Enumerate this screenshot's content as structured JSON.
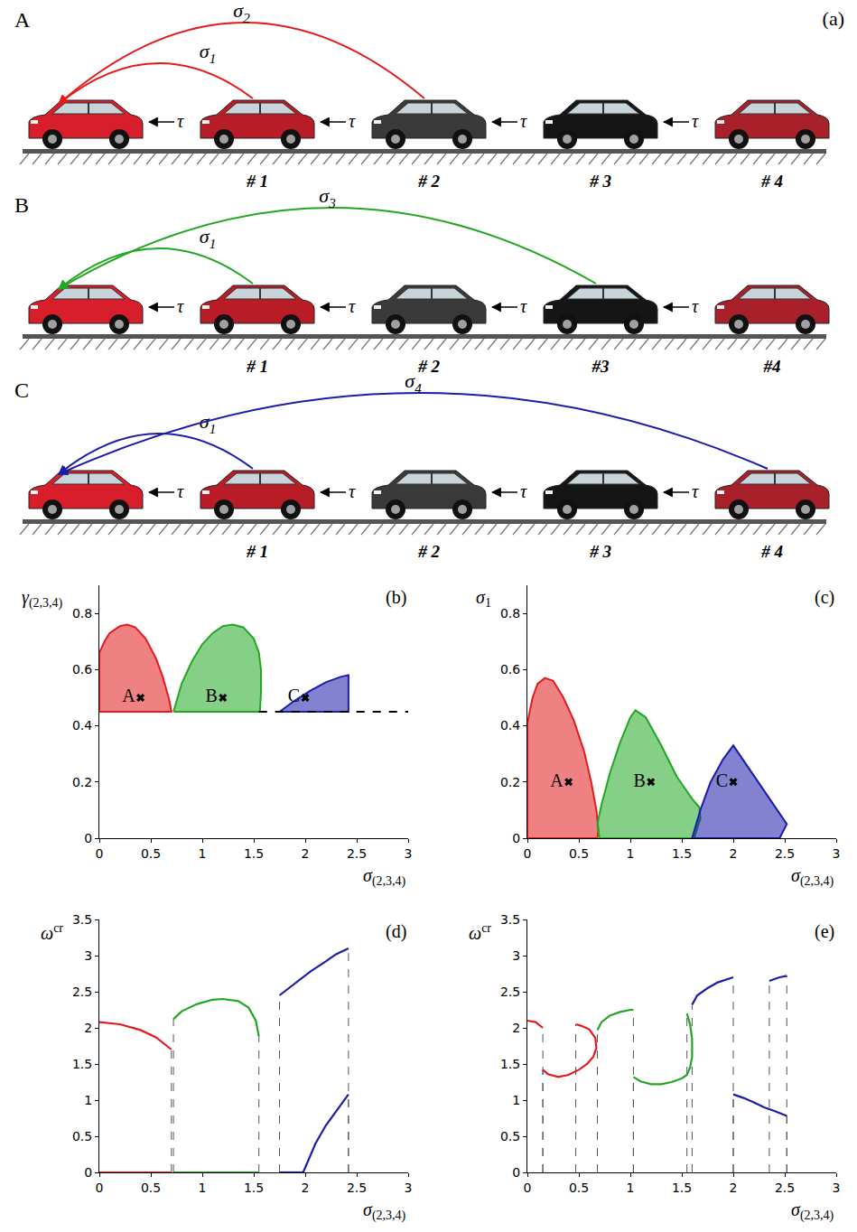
{
  "diagram": {
    "panel": "(a)",
    "rows": [
      {
        "label": "A",
        "color": "#e41a1c",
        "delay": "τ",
        "cars": [
          "# 1",
          "# 2",
          "# 3",
          "# 4"
        ],
        "links": [
          {
            "symbol": "σ",
            "sub": "1",
            "from": 1
          },
          {
            "symbol": "σ",
            "sub": "2",
            "from": 2
          }
        ]
      },
      {
        "label": "B",
        "color": "#22a722",
        "delay": "τ",
        "cars": [
          "# 1",
          "# 2",
          "#3",
          "#4"
        ],
        "links": [
          {
            "symbol": "σ",
            "sub": "1",
            "from": 1
          },
          {
            "symbol": "σ",
            "sub": "3",
            "from": 3
          }
        ]
      },
      {
        "label": "C",
        "color": "#1c1caa",
        "delay": "τ",
        "cars": [
          "# 1",
          "# 2",
          "# 3",
          "# 4"
        ],
        "links": [
          {
            "symbol": "σ",
            "sub": "1",
            "from": 1
          },
          {
            "symbol": "σ",
            "sub": "4",
            "from": 4
          }
        ]
      }
    ]
  },
  "chart_data": [
    {
      "type": "area",
      "panel": "(b)",
      "x_label": {
        "symbol": "σ",
        "sub": "(2,3,4)"
      },
      "y_label": {
        "symbol": "γ",
        "sub": "(2,3,4)"
      },
      "xlim": [
        0,
        3
      ],
      "xticks": [
        0,
        0.5,
        1,
        1.5,
        2,
        2.5,
        3
      ],
      "ylim": [
        0,
        0.9
      ],
      "yticks": [
        0,
        0.2,
        0.4,
        0.6,
        0.8
      ],
      "series": [
        {
          "type": "area",
          "color": "#e41a1c",
          "x": [
            0,
            0,
            0.05,
            0.1,
            0.2,
            0.27,
            0.35,
            0.45,
            0.55,
            0.62,
            0.68,
            0.7,
            0
          ],
          "values": [
            0.45,
            0.66,
            0.7,
            0.73,
            0.755,
            0.76,
            0.75,
            0.71,
            0.64,
            0.57,
            0.49,
            0.45,
            0.45
          ]
        },
        {
          "type": "area",
          "color": "#22a722",
          "x": [
            0.72,
            0.8,
            0.9,
            1.0,
            1.1,
            1.2,
            1.3,
            1.4,
            1.5,
            1.55,
            1.57,
            1.57,
            1.56,
            0.72
          ],
          "values": [
            0.45,
            0.55,
            0.63,
            0.69,
            0.73,
            0.755,
            0.76,
            0.75,
            0.71,
            0.66,
            0.6,
            0.52,
            0.45,
            0.45
          ]
        },
        {
          "type": "area",
          "color": "#1c1caa",
          "x": [
            1.75,
            1.9,
            2.05,
            2.2,
            2.35,
            2.42,
            2.42,
            1.75
          ],
          "values": [
            0.45,
            0.49,
            0.525,
            0.555,
            0.575,
            0.58,
            0.45,
            0.45
          ]
        },
        {
          "type": "line",
          "color": "#000000",
          "line_style": "dashed",
          "x": [
            1.55,
            3
          ],
          "values": [
            0.45,
            0.45
          ]
        }
      ],
      "points": {
        "marker": "x",
        "x": [
          0.4,
          1.2,
          2.0
        ],
        "values": [
          0.5,
          0.5,
          0.5
        ],
        "labels": [
          "A",
          "B",
          "C"
        ]
      }
    },
    {
      "type": "area",
      "panel": "(c)",
      "x_label": {
        "symbol": "σ",
        "sub": "(2,3,4)"
      },
      "y_label": {
        "symbol": "σ",
        "sub": "1"
      },
      "xlim": [
        0,
        3
      ],
      "xticks": [
        0,
        0.5,
        1,
        1.5,
        2,
        2.5,
        3
      ],
      "ylim": [
        0,
        0.9
      ],
      "yticks": [
        0,
        0.2,
        0.4,
        0.6,
        0.8
      ],
      "series": [
        {
          "type": "area",
          "color": "#e41a1c",
          "x": [
            0,
            0,
            0.05,
            0.1,
            0.17,
            0.25,
            0.35,
            0.45,
            0.55,
            0.62,
            0.67,
            0.69,
            0.68,
            0
          ],
          "values": [
            0,
            0.41,
            0.5,
            0.55,
            0.57,
            0.56,
            0.5,
            0.42,
            0.31,
            0.2,
            0.1,
            0.03,
            0,
            0
          ]
        },
        {
          "type": "area",
          "color": "#22a722",
          "x": [
            0.7,
            0.68,
            0.72,
            0.8,
            0.9,
            1.0,
            1.05,
            1.15,
            1.3,
            1.45,
            1.6,
            1.67,
            1.68,
            1.62,
            0.7
          ],
          "values": [
            0,
            0.05,
            0.12,
            0.23,
            0.34,
            0.43,
            0.455,
            0.43,
            0.33,
            0.22,
            0.14,
            0.11,
            0.07,
            0,
            0
          ]
        },
        {
          "type": "area",
          "color": "#1c1caa",
          "x": [
            1.6,
            1.68,
            1.78,
            1.9,
            2.0,
            2.52,
            2.45,
            1.6
          ],
          "values": [
            0,
            0.1,
            0.2,
            0.28,
            0.33,
            0.05,
            0,
            0
          ]
        }
      ],
      "points": {
        "marker": "x",
        "x": [
          0.4,
          1.2,
          2.0
        ],
        "values": [
          0.2,
          0.2,
          0.2
        ],
        "labels": [
          "A",
          "B",
          "C"
        ]
      }
    },
    {
      "type": "line",
      "panel": "(d)",
      "x_label": {
        "symbol": "σ",
        "sub": "(2,3,4)"
      },
      "y_label": {
        "symbol": "ω",
        "sup": "cr"
      },
      "xlim": [
        0,
        3
      ],
      "xticks": [
        0,
        0.5,
        1,
        1.5,
        2,
        2.5,
        3
      ],
      "ylim": [
        0,
        3.5
      ],
      "yticks": [
        0,
        0.5,
        1,
        1.5,
        2,
        2.5,
        3,
        3.5
      ],
      "series": [
        {
          "type": "line",
          "color": "#e41a1c",
          "line_style": "solid",
          "x": [
            0,
            0.2,
            0.4,
            0.55,
            0.7,
            null,
            0,
            0.7
          ],
          "values": [
            2.08,
            2.05,
            1.97,
            1.87,
            1.7,
            null,
            0,
            0
          ]
        },
        {
          "type": "line",
          "color": "#22a722",
          "line_style": "solid",
          "x": [
            0.72,
            0.8,
            0.95,
            1.1,
            1.2,
            1.35,
            1.45,
            1.52,
            1.55,
            null,
            0.72,
            1.55
          ],
          "values": [
            2.12,
            2.23,
            2.33,
            2.39,
            2.4,
            2.37,
            2.28,
            2.1,
            1.88,
            null,
            0,
            0
          ]
        },
        {
          "type": "line",
          "color": "#1c1caa",
          "line_style": "solid",
          "x": [
            1.75,
            1.9,
            2.05,
            2.2,
            2.3,
            2.42,
            null,
            1.75,
            1.98,
            null,
            1.98,
            2.1,
            2.2,
            2.3,
            2.42
          ],
          "values": [
            2.45,
            2.62,
            2.78,
            2.92,
            3.02,
            3.1,
            null,
            0,
            0,
            null,
            0,
            0.4,
            0.65,
            0.85,
            1.08
          ]
        }
      ]
    },
    {
      "type": "line",
      "panel": "(e)",
      "x_label": {
        "symbol": "σ",
        "sub": "(2,3,4)"
      },
      "y_label": {
        "symbol": "ω",
        "sup": "cr"
      },
      "xlim": [
        0,
        3
      ],
      "xticks": [
        0,
        0.5,
        1,
        1.5,
        2,
        2.5,
        3
      ],
      "ylim": [
        0,
        3.5
      ],
      "yticks": [
        0,
        0.5,
        1,
        1.5,
        2,
        2.5,
        3,
        3.5
      ],
      "series": [
        {
          "type": "line",
          "color": "#e41a1c",
          "line_style": "solid",
          "x": [
            0,
            0.08,
            0.15,
            null,
            0.15,
            0.2,
            0.3,
            0.4,
            0.5,
            0.58,
            0.64,
            0.67,
            0.66,
            0.6,
            0.52,
            0.47
          ],
          "values": [
            2.1,
            2.08,
            2.0,
            null,
            1.42,
            1.36,
            1.32,
            1.35,
            1.42,
            1.5,
            1.6,
            1.72,
            1.86,
            1.98,
            2.03,
            2.05
          ]
        },
        {
          "type": "line",
          "color": "#22a722",
          "line_style": "solid",
          "x": [
            0.68,
            0.72,
            0.8,
            0.9,
            1.0,
            1.03,
            null,
            1.03,
            1.1,
            1.2,
            1.3,
            1.4,
            1.5,
            1.55,
            1.58,
            1.6,
            1.6,
            1.58,
            1.55
          ],
          "values": [
            1.97,
            2.08,
            2.17,
            2.22,
            2.25,
            2.25,
            null,
            1.32,
            1.26,
            1.22,
            1.22,
            1.25,
            1.3,
            1.35,
            1.45,
            1.6,
            1.85,
            2.05,
            2.2
          ]
        },
        {
          "type": "line",
          "color": "#1c1caa",
          "line_style": "solid",
          "x": [
            1.6,
            1.65,
            1.75,
            1.85,
            2.0,
            null,
            2.0,
            2.1,
            2.2,
            2.3,
            2.4,
            2.52,
            null,
            2.35,
            2.45,
            2.52
          ],
          "values": [
            2.32,
            2.45,
            2.55,
            2.63,
            2.7,
            null,
            1.08,
            1.03,
            0.97,
            0.9,
            0.85,
            0.78,
            null,
            2.65,
            2.7,
            2.72
          ]
        }
      ]
    }
  ]
}
